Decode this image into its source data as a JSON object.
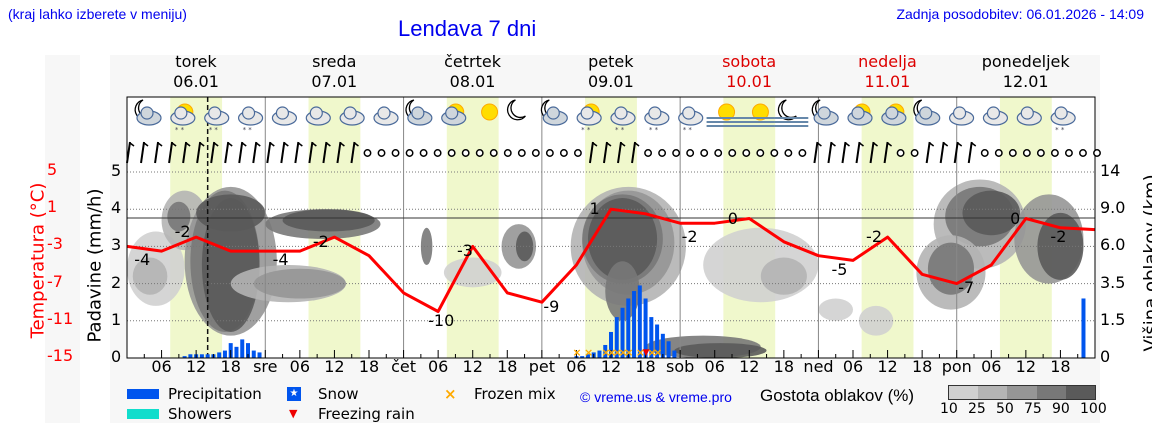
{
  "header": {
    "hint": "(kraj lahko izberete v meniju)",
    "title": "Lendava 7 dni",
    "updated": "Zadnja posodobitev: 06.01.2026 - 14:09"
  },
  "axes": {
    "temperature_title": "Temperatura (°C)",
    "precip_title": "Padavine (mm/h)",
    "cloud_title": "Višina oblakov (km)",
    "temperature_ticks": [
      "5",
      "1",
      "-3",
      "-7",
      "-11",
      "-15"
    ],
    "precip_ticks": [
      "5",
      "4",
      "3",
      "2",
      "1",
      "0"
    ],
    "cloud_ticks": [
      "14",
      "9.0",
      "6.0",
      "3.5",
      "1.5",
      "0"
    ]
  },
  "days": [
    {
      "name": "torek",
      "date": "06.01",
      "weekend": false
    },
    {
      "name": "sreda",
      "date": "07.01",
      "weekend": false
    },
    {
      "name": "četrtek",
      "date": "08.01",
      "weekend": false
    },
    {
      "name": "petek",
      "date": "09.01",
      "weekend": false
    },
    {
      "name": "sobota",
      "date": "10.01",
      "weekend": true
    },
    {
      "name": "nedelja",
      "date": "11.01",
      "weekend": true
    },
    {
      "name": "ponedeljek",
      "date": "12.01",
      "weekend": false
    }
  ],
  "xaxis": {
    "labels": [
      "06",
      "12",
      "18",
      "sre",
      "06",
      "12",
      "18",
      "čet",
      "06",
      "12",
      "18",
      "pet",
      "06",
      "12",
      "18",
      "sob",
      "06",
      "12",
      "18",
      "ned",
      "06",
      "12",
      "18",
      "pon",
      "06",
      "12",
      "18"
    ]
  },
  "legend": {
    "precipitation": "Precipitation",
    "showers": "Showers",
    "snow": "Snow",
    "freezing_rain": "Freezing rain",
    "frozen_mix": "Frozen mix",
    "copyright": "© vreme.us & vreme.pro",
    "cloud_density_title": "Gostota oblakov (%)",
    "cloud_scale": [
      "10",
      "25",
      "50",
      "75",
      "90",
      "100"
    ]
  },
  "colors": {
    "title_blue": "#0000ee",
    "temperature_red": "#ff0000",
    "precip_blue": "#0055ee",
    "showers_teal": "#11ddcc",
    "frozen_mix_orange": "#ffaa00",
    "day_band": "#f0f8cc",
    "cloud_shades": [
      "#d0d0d0",
      "#b4b4b4",
      "#969696",
      "#787878",
      "#5a5a5a"
    ]
  },
  "chart_data": {
    "type": "line",
    "title": "Lendava 7 dni",
    "xlabel": "",
    "ylabel": "Temperatura (°C) / Padavine (mm/h)",
    "ylim_temperature": [
      -15,
      5
    ],
    "ylim_precip": [
      0,
      5
    ],
    "series": [
      {
        "name": "Temperatura (°C)",
        "x_hours": [
          0,
          6,
          12,
          18,
          24,
          30,
          36,
          42,
          48,
          54,
          60,
          66,
          72,
          78,
          84,
          90,
          96,
          102,
          108,
          114,
          120,
          126,
          132,
          138,
          144,
          150,
          156,
          162
        ],
        "values": [
          -3,
          -3.5,
          -2,
          -3.5,
          -3.5,
          -3.5,
          -2,
          -4,
          -8,
          -10,
          -3,
          -8,
          -9,
          -5,
          1,
          0.5,
          -0.5,
          -0.5,
          0,
          -2.5,
          -4,
          -4.5,
          -2,
          -6,
          -7,
          -5,
          0,
          -1
        ]
      },
      {
        "name": "Precipitation (mm/h)",
        "x_hours": [
          10,
          11,
          12,
          13,
          14,
          15,
          16,
          17,
          18,
          19,
          20,
          21,
          22,
          23,
          78,
          79,
          80,
          81,
          82,
          83,
          84,
          85,
          86,
          87,
          88,
          89,
          90,
          91,
          92,
          93,
          94,
          95,
          166
        ],
        "values": [
          0.05,
          0.1,
          0.1,
          0.1,
          0.1,
          0.1,
          0.15,
          0.2,
          0.4,
          0.3,
          0.5,
          0.4,
          0.2,
          0.15,
          0.05,
          0.05,
          0.1,
          0.15,
          0.2,
          0.35,
          0.7,
          1.1,
          1.35,
          1.6,
          1.8,
          1.95,
          1.6,
          1.1,
          0.9,
          0.65,
          0.45,
          0.2,
          1.6
        ]
      }
    ],
    "temperature_labels": [
      {
        "day": "torek",
        "values": [
          "-4",
          "-2"
        ]
      },
      {
        "day": "sreda",
        "values": [
          "-4",
          "-2"
        ]
      },
      {
        "day": "četrtek",
        "values": [
          "-10",
          "-3"
        ]
      },
      {
        "day": "petek",
        "values": [
          "-9",
          "1"
        ]
      },
      {
        "day": "sobota",
        "values": [
          "-2",
          "0"
        ]
      },
      {
        "day": "nedelja",
        "values": [
          "-5",
          "-2"
        ]
      },
      {
        "day": "ponedeljek",
        "values": [
          "-7",
          "0",
          "-2"
        ]
      }
    ],
    "current_time_marker": "torek 14:00",
    "legend": [
      "Precipitation",
      "Showers",
      "Snow",
      "Freezing rain",
      "Frozen mix"
    ],
    "grid": true
  }
}
